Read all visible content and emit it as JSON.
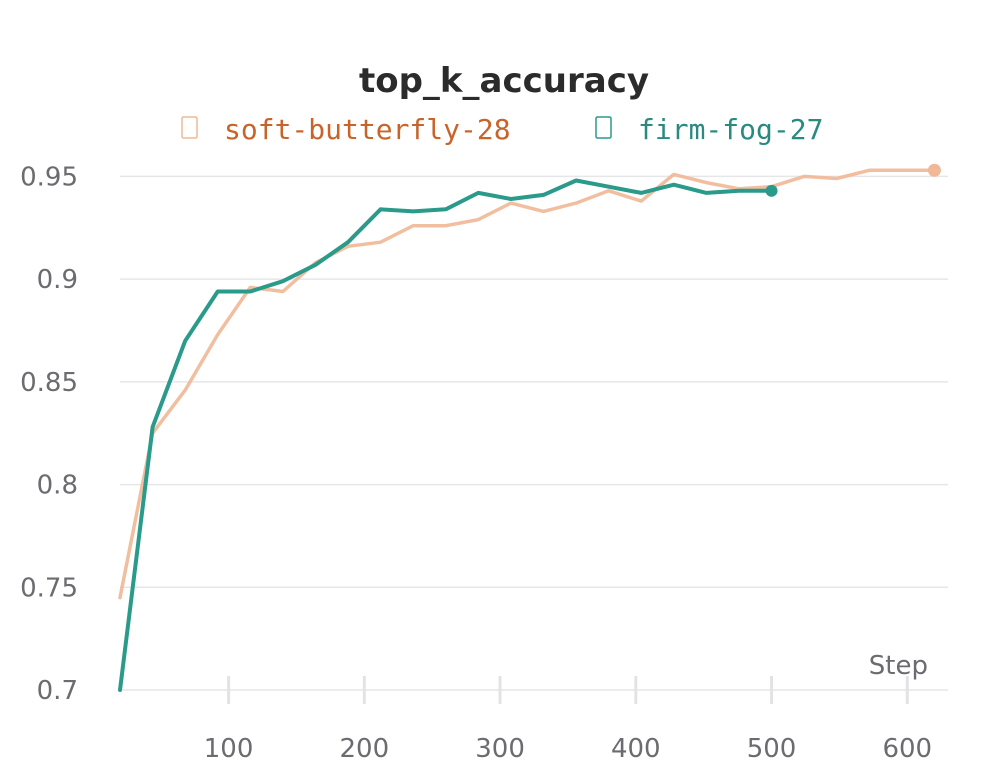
{
  "chart_data": {
    "type": "line",
    "title": "top_k_accuracy",
    "xlabel": "Step",
    "ylabel": "",
    "xlim": [
      20,
      630
    ],
    "ylim": [
      0.7,
      0.958
    ],
    "x_ticks": [
      100,
      200,
      300,
      400,
      500,
      600
    ],
    "x_tick_labels": [
      "100",
      "200",
      "300",
      "400",
      "500",
      "600"
    ],
    "y_ticks": [
      0.7,
      0.75,
      0.8,
      0.85,
      0.9,
      0.95
    ],
    "y_tick_labels": [
      "0.7",
      "0.75",
      "0.8",
      "0.85",
      "0.9",
      "0.95"
    ],
    "grid": true,
    "legend_position": "top-center",
    "series": [
      {
        "name": "soft-butterfly-28",
        "color": "#f0b896",
        "label_color": "#c8642a",
        "x": [
          20,
          44,
          68,
          92,
          116,
          140,
          164,
          188,
          212,
          236,
          260,
          284,
          308,
          332,
          356,
          380,
          404,
          428,
          452,
          476,
          500,
          524,
          548,
          572,
          596,
          620
        ],
        "values": [
          0.745,
          0.825,
          0.846,
          0.873,
          0.896,
          0.894,
          0.908,
          0.916,
          0.918,
          0.926,
          0.926,
          0.929,
          0.937,
          0.933,
          0.937,
          0.943,
          0.938,
          0.951,
          0.947,
          0.944,
          0.945,
          0.95,
          0.949,
          0.953,
          0.953,
          0.953
        ]
      },
      {
        "name": "firm-fog-27",
        "color": "#2a9a8a",
        "label_color": "#2a8a80",
        "x": [
          20,
          44,
          68,
          92,
          116,
          140,
          164,
          188,
          212,
          236,
          260,
          284,
          308,
          332,
          356,
          380,
          404,
          428,
          452,
          476,
          500
        ],
        "values": [
          0.7,
          0.828,
          0.87,
          0.894,
          0.894,
          0.899,
          0.907,
          0.918,
          0.934,
          0.933,
          0.934,
          0.942,
          0.939,
          0.941,
          0.948,
          0.945,
          0.942,
          0.946,
          0.942,
          0.943,
          0.943
        ]
      }
    ]
  }
}
